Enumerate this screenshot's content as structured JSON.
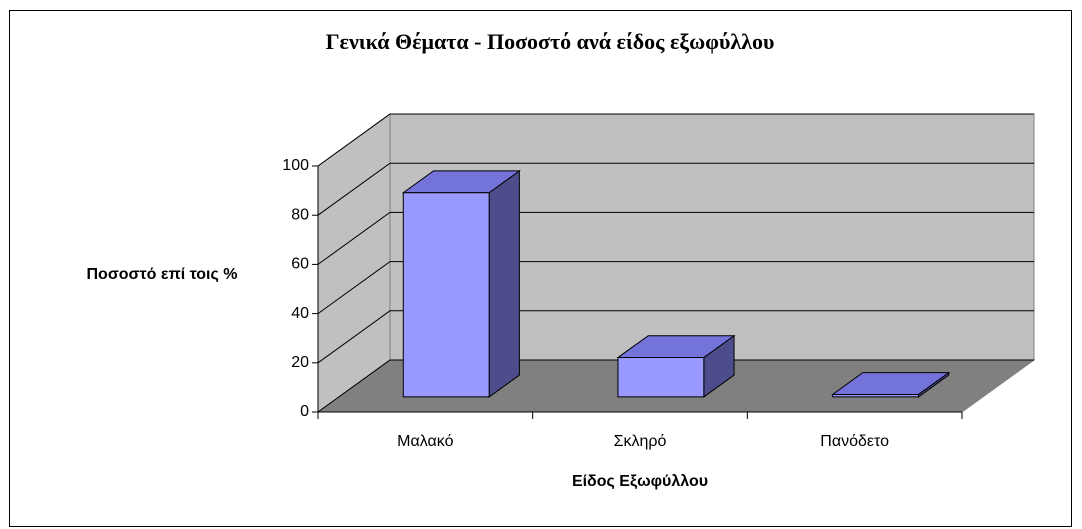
{
  "chart_data": {
    "type": "bar3d",
    "title": "Γενικά Θέματα - Ποσοστό ανά είδος εξωφύλλου",
    "x_label": "Είδος Εξωφύλλου",
    "y_label": "Ποσοστό επί τοις %",
    "categories": [
      "Μαλακό",
      "Σκληρό",
      "Πανόδετο"
    ],
    "values": [
      83,
      16,
      1
    ],
    "color": "#9999ff",
    "ylim": [
      0,
      100
    ],
    "yticks": [
      0,
      20,
      40,
      60,
      80,
      100
    ],
    "grid": true
  }
}
